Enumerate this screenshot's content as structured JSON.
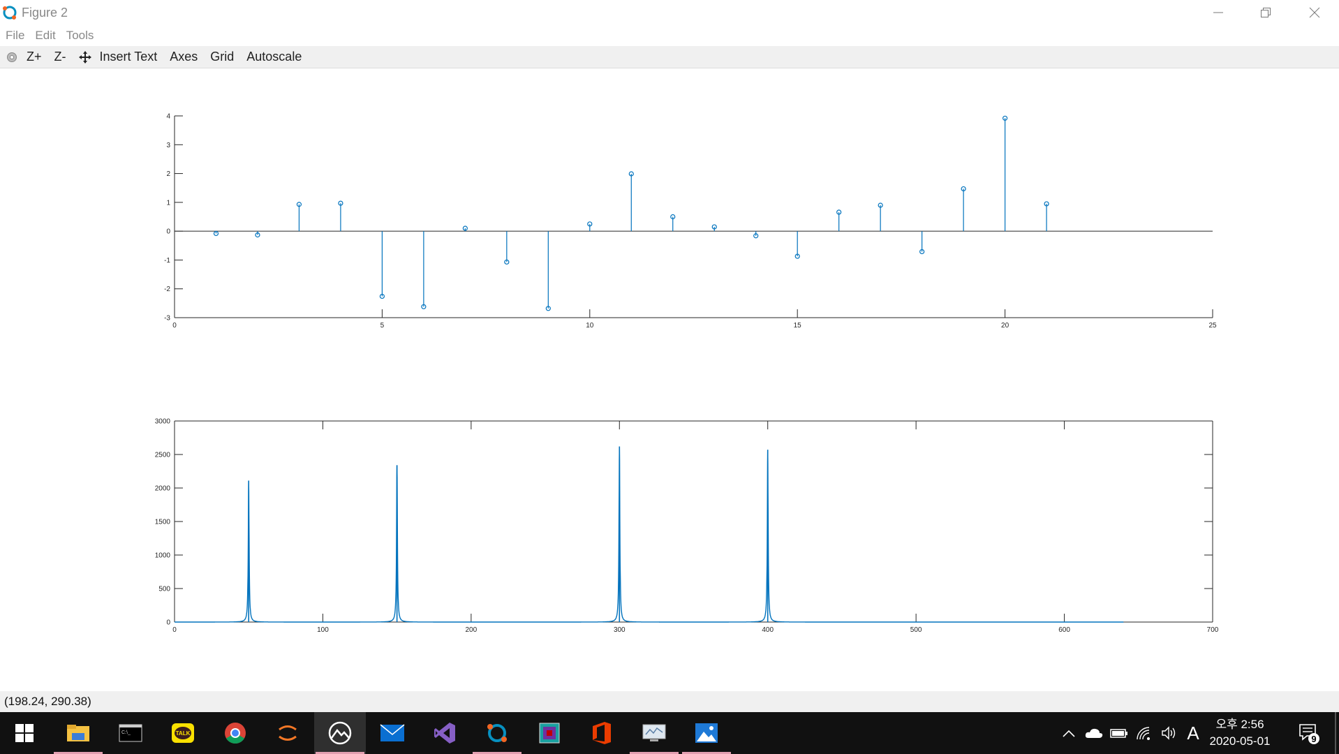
{
  "window": {
    "title": "Figure 2",
    "minimize_icon": "minimize-icon",
    "maximize_icon": "restore-icon",
    "close_icon": "close-icon"
  },
  "menu": {
    "items": [
      "File",
      "Edit",
      "Tools"
    ]
  },
  "toolbar": {
    "items": [
      {
        "label": "",
        "icon": "rotate-icon"
      },
      {
        "label": "Z+"
      },
      {
        "label": "Z-"
      },
      {
        "label": "",
        "icon": "pan-icon"
      },
      {
        "label": "Insert Text"
      },
      {
        "label": "Axes"
      },
      {
        "label": "Grid"
      },
      {
        "label": "Autoscale"
      }
    ]
  },
  "status": {
    "coordinates": "(198.24, 290.38)"
  },
  "colors": {
    "series": "#0072BD",
    "axis": "#262626",
    "toolbar_bg": "#f0f0f0",
    "taskbar_bg": "#111111"
  },
  "chart_data": [
    {
      "type": "stem",
      "xlim": [
        0,
        25
      ],
      "ylim": [
        -3,
        4
      ],
      "xticks": [
        0,
        5,
        10,
        15,
        20,
        25
      ],
      "yticks": [
        -3,
        -2,
        -1,
        0,
        1,
        2,
        3,
        4
      ],
      "x": [
        1,
        2,
        3,
        4,
        5,
        6,
        7,
        8,
        9,
        10,
        11,
        12,
        13,
        14,
        15,
        16,
        17,
        18,
        19,
        20,
        21
      ],
      "values": [
        -0.08,
        -0.13,
        0.93,
        0.97,
        -2.26,
        -2.62,
        0.1,
        -1.07,
        -2.68,
        0.25,
        1.99,
        0.5,
        0.15,
        -0.16,
        -0.87,
        0.66,
        0.9,
        -0.71,
        1.47,
        3.92,
        0.95
      ],
      "baseline": 0,
      "grid": false
    },
    {
      "type": "line",
      "xlim": [
        0,
        700
      ],
      "ylim": [
        0,
        3000
      ],
      "xticks": [
        0,
        100,
        200,
        300,
        400,
        500,
        600,
        700
      ],
      "yticks": [
        0,
        500,
        1000,
        1500,
        2000,
        2500,
        3000
      ],
      "x_end": 640,
      "peaks": [
        {
          "x": 50,
          "value": 2110
        },
        {
          "x": 150,
          "value": 2340
        },
        {
          "x": 300,
          "value": 2620
        },
        {
          "x": 400,
          "value": 2570
        }
      ],
      "grid": false
    }
  ],
  "taskbar": {
    "apps": [
      {
        "name": "start",
        "icon": "windows-start-icon"
      },
      {
        "name": "file-explorer",
        "icon": "folder-icon"
      },
      {
        "name": "command-prompt",
        "icon": "terminal-icon"
      },
      {
        "name": "kakaotalk",
        "icon": "talk-icon",
        "label": "TALK"
      },
      {
        "name": "chrome",
        "icon": "chrome-icon"
      },
      {
        "name": "jupyter",
        "icon": "jupyter-icon"
      },
      {
        "name": "photos-app",
        "icon": "mountain-icon"
      },
      {
        "name": "mail",
        "icon": "mail-icon"
      },
      {
        "name": "visual-studio",
        "icon": "visual-studio-icon"
      },
      {
        "name": "octave",
        "icon": "octave-icon"
      },
      {
        "name": "app-9",
        "icon": "app-icon"
      },
      {
        "name": "office",
        "icon": "office-icon"
      },
      {
        "name": "remote-desktop",
        "icon": "remote-desktop-icon"
      },
      {
        "name": "photos",
        "icon": "image-icon"
      }
    ],
    "tray": {
      "time": "오후 2:56",
      "date": "2020-05-01",
      "ime": "A",
      "notification_count": "9"
    }
  }
}
